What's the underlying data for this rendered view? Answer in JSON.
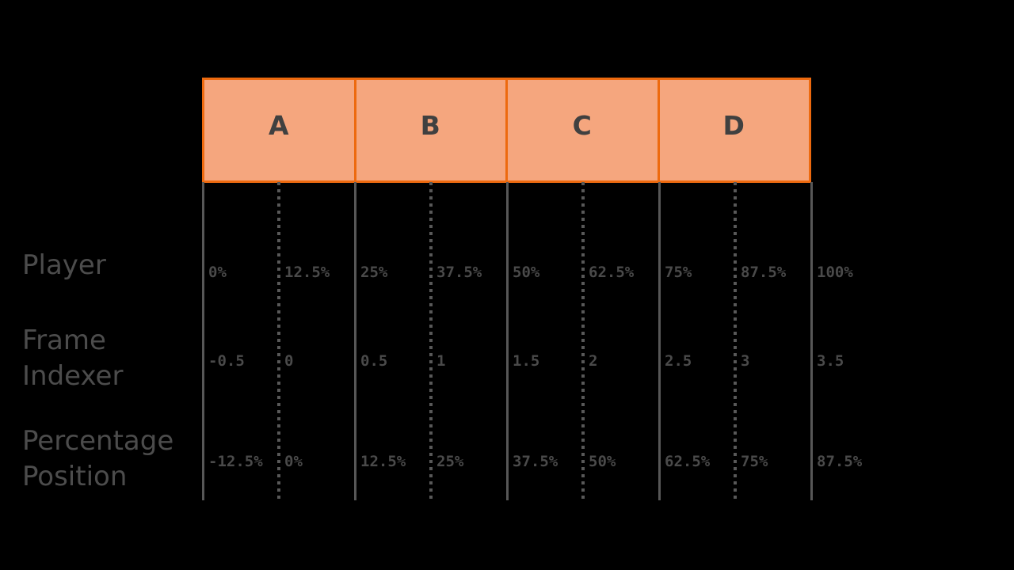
{
  "diagram": {
    "boxes": {
      "labels": [
        "A",
        "B",
        "C",
        "D"
      ],
      "fill_color": "#F5A67E",
      "border_color": "#ED6A0F",
      "label_color": "#404040"
    },
    "rows": [
      {
        "label": "Player",
        "values": [
          "0%",
          "12.5%",
          "25%",
          "37.5%",
          "50%",
          "62.5%",
          "75%",
          "87.5%",
          "100%"
        ]
      },
      {
        "label": "Frame Indexer",
        "values": [
          "-0.5",
          "0",
          "0.5",
          "1",
          "1.5",
          "2",
          "2.5",
          "3",
          "3.5"
        ]
      },
      {
        "label": "Percentage Position",
        "values": [
          "-12.5%",
          "0%",
          "12.5%",
          "25%",
          "37.5%",
          "50%",
          "62.5%",
          "75%",
          "87.5%"
        ]
      }
    ],
    "colors": {
      "background": "#000000",
      "guide_line": "#575757",
      "value_text": "#4A4A4A",
      "row_label_text": "#4C4C4C"
    }
  }
}
